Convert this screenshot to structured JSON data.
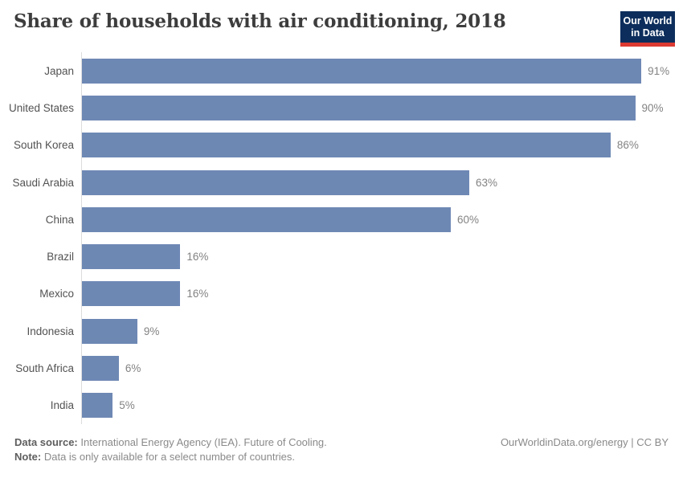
{
  "header": {
    "title": "Share of households with air conditioning, 2018",
    "logo": {
      "line1": "Our World",
      "line2": "in Data"
    }
  },
  "chart_data": {
    "type": "bar",
    "orientation": "horizontal",
    "title": "Share of households with air conditioning, 2018",
    "categories": [
      "Japan",
      "United States",
      "South Korea",
      "Saudi Arabia",
      "China",
      "Brazil",
      "Mexico",
      "Indonesia",
      "South Africa",
      "India"
    ],
    "values": [
      91,
      90,
      86,
      63,
      60,
      16,
      16,
      9,
      6,
      5
    ],
    "value_labels": [
      "91%",
      "90%",
      "86%",
      "63%",
      "60%",
      "16%",
      "16%",
      "9%",
      "6%",
      "5%"
    ],
    "unit": "%",
    "xlim": [
      0,
      97.5
    ],
    "grid": false,
    "legend": "none",
    "bar_color": "#6e88b4"
  },
  "footer": {
    "source_label": "Data source:",
    "source_text": "International Energy Agency (IEA). Future of Cooling.",
    "note_label": "Note:",
    "note_text": "Data is only available for a select number of countries.",
    "credit": "OurWorldinData.org/energy | CC BY"
  },
  "colors": {
    "bar": "#6e88b4",
    "axis_line": "#dcdcde",
    "title_text": "#3d3d3d",
    "category_text": "#525252",
    "value_text": "#838383",
    "footer_text": "#8a8a8a",
    "footer_bold_text": "#5e5e5e",
    "logo_background": "#0d2e5c",
    "logo_underline": "#dc3a32"
  }
}
